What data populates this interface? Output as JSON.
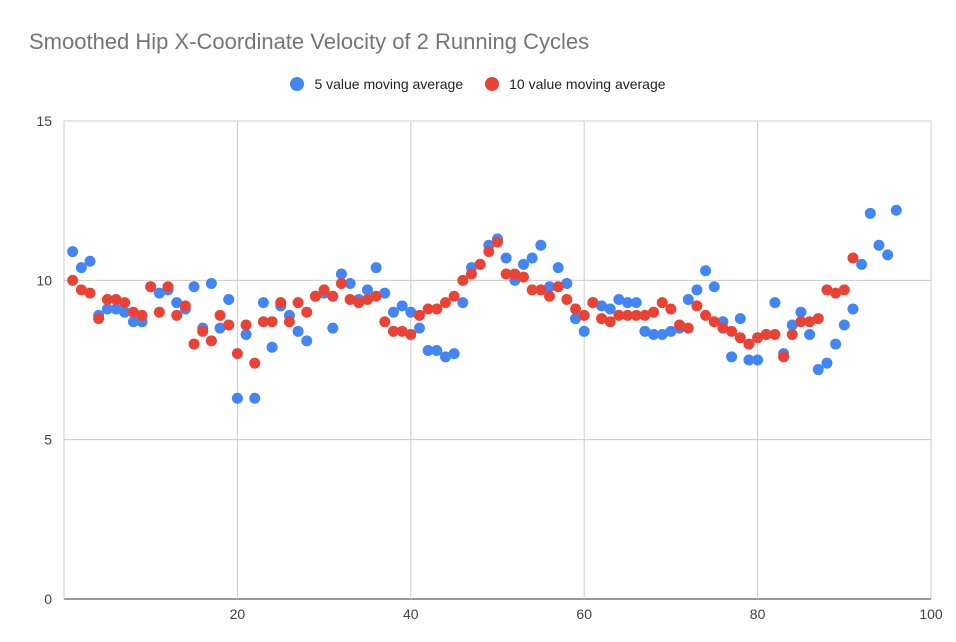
{
  "chart_data": {
    "type": "scatter",
    "title": "Smoothed Hip X-Coordinate Velocity of 2 Running Cycles",
    "xlabel": "",
    "ylabel": "",
    "xlim": [
      0,
      100
    ],
    "ylim": [
      0,
      15
    ],
    "x_ticks": [
      20,
      40,
      60,
      80,
      100
    ],
    "y_ticks": [
      0,
      5,
      10,
      15
    ],
    "grid": true,
    "legend_position": "top",
    "series": [
      {
        "name": "5 value moving average",
        "color": "#4285f4",
        "x": [
          1,
          2,
          3,
          4,
          5,
          6,
          7,
          8,
          9,
          10,
          11,
          12,
          13,
          14,
          15,
          16,
          17,
          18,
          19,
          20,
          21,
          22,
          23,
          24,
          25,
          26,
          27,
          28,
          29,
          30,
          31,
          32,
          33,
          34,
          35,
          36,
          37,
          38,
          39,
          40,
          41,
          42,
          43,
          44,
          45,
          46,
          47,
          48,
          49,
          50,
          51,
          52,
          53,
          54,
          55,
          56,
          57,
          58,
          59,
          60,
          61,
          62,
          63,
          64,
          65,
          66,
          67,
          68,
          69,
          70,
          71,
          72,
          73,
          74,
          75,
          76,
          77,
          78,
          79,
          80,
          81,
          82,
          83,
          84,
          85,
          86,
          87,
          88,
          89,
          90,
          91,
          92,
          93,
          94,
          95,
          96
        ],
        "y": [
          10.9,
          10.4,
          10.6,
          8.9,
          9.1,
          9.1,
          9.0,
          8.7,
          8.7,
          9.8,
          9.6,
          9.7,
          9.3,
          9.1,
          9.8,
          8.5,
          9.9,
          8.5,
          9.4,
          6.3,
          8.3,
          6.3,
          9.3,
          7.9,
          9.2,
          8.9,
          8.4,
          8.1,
          9.5,
          9.6,
          8.5,
          10.2,
          9.9,
          9.4,
          9.7,
          10.4,
          9.6,
          9.0,
          9.2,
          9.0,
          8.5,
          7.8,
          7.8,
          7.6,
          7.7,
          9.3,
          10.4,
          10.5,
          11.1,
          11.3,
          10.7,
          10.0,
          10.5,
          10.7,
          11.1,
          9.8,
          10.4,
          9.9,
          8.8,
          8.4,
          9.3,
          9.2,
          9.1,
          9.4,
          9.3,
          9.3,
          8.4,
          8.3,
          8.3,
          8.4,
          8.5,
          9.4,
          9.7,
          10.3,
          9.8,
          8.7,
          7.6,
          8.8,
          7.5,
          7.5,
          8.3,
          9.3,
          7.7,
          8.6,
          9.0,
          8.3,
          7.2,
          7.4,
          8.0,
          8.6,
          9.1,
          10.5,
          12.1,
          11.1,
          10.8,
          12.2
        ]
      },
      {
        "name": "10 value moving average",
        "color": "#ea4335",
        "x": [
          1,
          2,
          3,
          4,
          5,
          6,
          7,
          8,
          9,
          10,
          11,
          12,
          13,
          14,
          15,
          16,
          17,
          18,
          19,
          20,
          21,
          22,
          23,
          24,
          25,
          26,
          27,
          28,
          29,
          30,
          31,
          32,
          33,
          34,
          35,
          36,
          37,
          38,
          39,
          40,
          41,
          42,
          43,
          44,
          45,
          46,
          47,
          48,
          49,
          50,
          51,
          52,
          53,
          54,
          55,
          56,
          57,
          58,
          59,
          60,
          61,
          62,
          63,
          64,
          65,
          66,
          67,
          68,
          69,
          70,
          71,
          72,
          73,
          74,
          75,
          76,
          77,
          78,
          79,
          80,
          81,
          82,
          83,
          84,
          85,
          86,
          87,
          88,
          89,
          90,
          91
        ],
        "y": [
          10.0,
          9.7,
          9.6,
          8.8,
          9.4,
          9.4,
          9.3,
          9.0,
          8.9,
          9.8,
          9.0,
          9.8,
          8.9,
          9.2,
          8.0,
          8.4,
          8.1,
          8.9,
          8.6,
          7.7,
          8.6,
          7.4,
          8.7,
          8.7,
          9.3,
          8.7,
          9.3,
          9.0,
          9.5,
          9.7,
          9.5,
          9.9,
          9.4,
          9.3,
          9.4,
          9.5,
          8.7,
          8.4,
          8.4,
          8.3,
          8.9,
          9.1,
          9.1,
          9.3,
          9.5,
          10.0,
          10.2,
          10.5,
          10.9,
          11.2,
          10.2,
          10.2,
          10.1,
          9.7,
          9.7,
          9.5,
          9.8,
          9.4,
          9.1,
          8.9,
          9.3,
          8.8,
          8.7,
          8.9,
          8.9,
          8.9,
          8.9,
          9.0,
          9.3,
          9.1,
          8.6,
          8.5,
          9.2,
          8.9,
          8.7,
          8.5,
          8.4,
          8.2,
          8.0,
          8.2,
          8.3,
          8.3,
          7.6,
          8.3,
          8.7,
          8.7,
          8.8,
          9.7,
          9.6,
          9.7,
          10.7
        ]
      }
    ]
  }
}
